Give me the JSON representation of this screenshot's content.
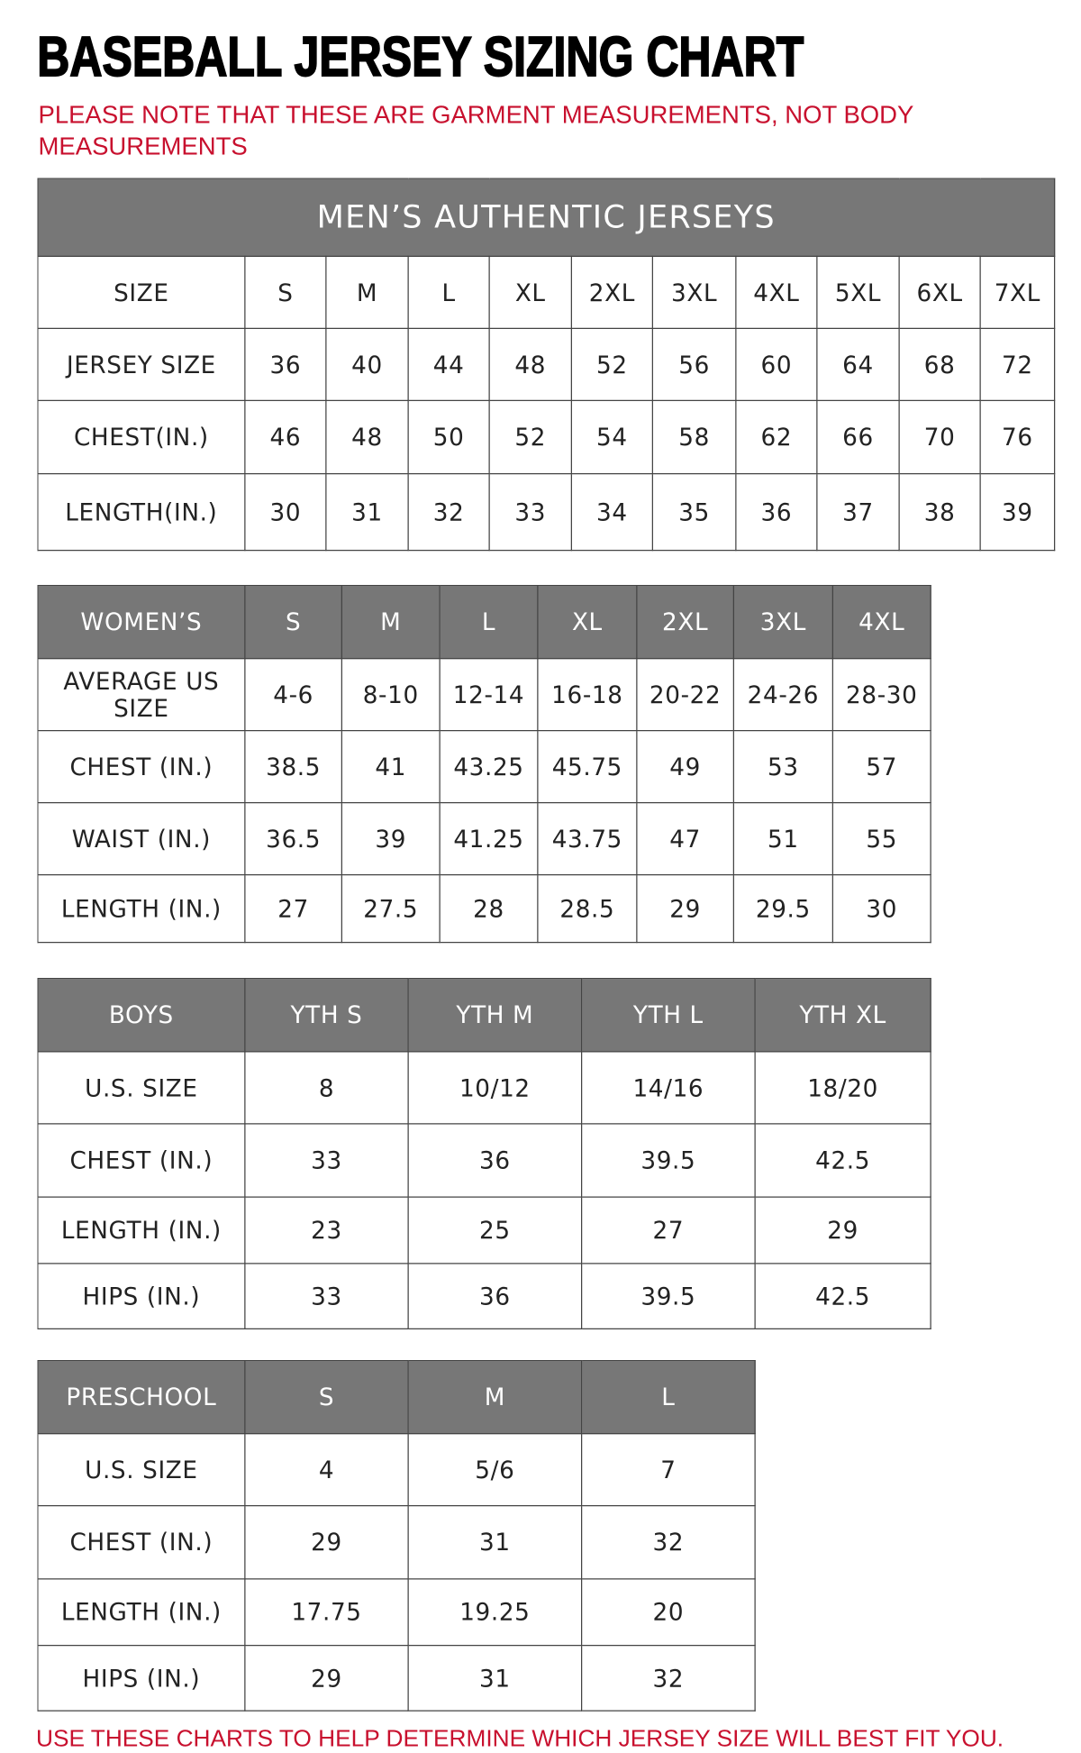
{
  "title": "BASEBALL JERSEY SIZING CHART",
  "note": "PLEASE NOTE THAT THESE ARE GARMENT MEASUREMENTS, NOT BODY MEASUREMENTS",
  "footer": "USE THESE CHARTS TO HELP DETERMINE WHICH JERSEY SIZE WILL BEST FIT YOU.",
  "colors": {
    "header_bg": "#777777",
    "accent_red": "#c8102e"
  },
  "mens": {
    "caption": "MEN’S AUTHENTIC JERSEYS",
    "header": [
      "SIZE",
      "S",
      "M",
      "L",
      "XL",
      "2XL",
      "3XL",
      "4XL",
      "5XL",
      "6XL",
      "7XL"
    ],
    "rows": [
      [
        "JERSEY SIZE",
        "36",
        "40",
        "44",
        "48",
        "52",
        "56",
        "60",
        "64",
        "68",
        "72"
      ],
      [
        "CHEST(IN.)",
        "46",
        "48",
        "50",
        "52",
        "54",
        "58",
        "62",
        "66",
        "70",
        "76"
      ],
      [
        "LENGTH(IN.)",
        "30",
        "31",
        "32",
        "33",
        "34",
        "35",
        "36",
        "37",
        "38",
        "39"
      ]
    ]
  },
  "womens": {
    "header": [
      "WOMEN’S",
      "S",
      "M",
      "L",
      "XL",
      "2XL",
      "3XL",
      "4XL"
    ],
    "rows": [
      [
        "AVERAGE US SIZE",
        "4-6",
        "8-10",
        "12-14",
        "16-18",
        "20-22",
        "24-26",
        "28-30"
      ],
      [
        "CHEST (IN.)",
        "38.5",
        "41",
        "43.25",
        "45.75",
        "49",
        "53",
        "57"
      ],
      [
        "WAIST (IN.)",
        "36.5",
        "39",
        "41.25",
        "43.75",
        "47",
        "51",
        "55"
      ],
      [
        "LENGTH (IN.)",
        "27",
        "27.5",
        "28",
        "28.5",
        "29",
        "29.5",
        "30"
      ]
    ]
  },
  "boys": {
    "header": [
      "BOYS",
      "YTH S",
      "YTH M",
      "YTH L",
      "YTH XL"
    ],
    "rows": [
      [
        "U.S. SIZE",
        "8",
        "10/12",
        "14/16",
        "18/20"
      ],
      [
        "CHEST (IN.)",
        "33",
        "36",
        "39.5",
        "42.5"
      ],
      [
        "LENGTH (IN.)",
        "23",
        "25",
        "27",
        "29"
      ],
      [
        "HIPS (IN.)",
        "33",
        "36",
        "39.5",
        "42.5"
      ]
    ]
  },
  "preschool": {
    "header": [
      "PRESCHOOL",
      "S",
      "M",
      "L"
    ],
    "rows": [
      [
        "U.S. SIZE",
        "4",
        "5/6",
        "7"
      ],
      [
        "CHEST (IN.)",
        "29",
        "31",
        "32"
      ],
      [
        "LENGTH (IN.)",
        "17.75",
        "19.25",
        "20"
      ],
      [
        "HIPS (IN.)",
        "29",
        "31",
        "32"
      ]
    ]
  }
}
